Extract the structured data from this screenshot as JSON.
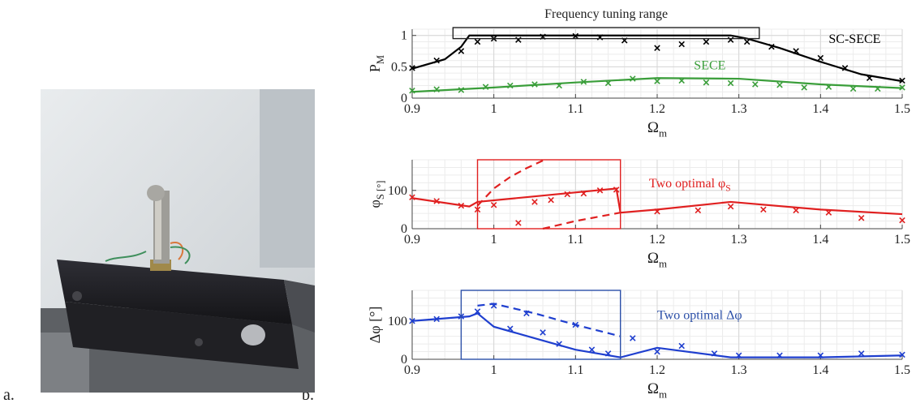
{
  "labels": {
    "panel_a": "a.",
    "panel_b": "b."
  },
  "photo": {
    "subject": "cantilever-harvester-photo",
    "colors": {
      "wall": "#d7dbde",
      "block": "#1c1c20",
      "plate": "#9e9d98",
      "frame": "#6c6e72",
      "wire_green": "#3f8f5c",
      "wire_orange": "#d9773b"
    }
  },
  "chart_data": [
    {
      "type": "line",
      "title": "Frequency tuning range",
      "xlabel": "Ω_m",
      "ylabel": "P_M",
      "xlim": [
        0.9,
        1.5
      ],
      "ylim": [
        0,
        1.1
      ],
      "xticks": [
        0.9,
        1,
        1.1,
        1.2,
        1.3,
        1.4,
        1.5
      ],
      "yticks": [
        0,
        0.5,
        1
      ],
      "xtick_labels": [
        "0.9",
        "1",
        "1.1",
        "1.2",
        "1.3",
        "1.4",
        "1.5"
      ],
      "ytick_labels": [
        "0",
        "0.5",
        "1"
      ],
      "grid": true,
      "highlight_box": {
        "x": [
          0.95,
          1.325
        ],
        "y": [
          0.95,
          1.1
        ],
        "color": "#222222"
      },
      "series": [
        {
          "name": "SC-SECE",
          "style": "line",
          "color": "#000000",
          "x": [
            0.9,
            0.94,
            0.96,
            0.97,
            1.0,
            1.1,
            1.2,
            1.29,
            1.31,
            1.35,
            1.4,
            1.45,
            1.5
          ],
          "y": [
            0.47,
            0.62,
            0.82,
            1.0,
            1.0,
            1.0,
            1.0,
            1.0,
            0.95,
            0.8,
            0.58,
            0.38,
            0.27
          ]
        },
        {
          "name": "",
          "style": "markers",
          "color": "#000000",
          "x": [
            0.9,
            0.93,
            0.96,
            0.98,
            1.0,
            1.03,
            1.06,
            1.1,
            1.13,
            1.16,
            1.2,
            1.23,
            1.26,
            1.29,
            1.31,
            1.34,
            1.37,
            1.4,
            1.43,
            1.46,
            1.5
          ],
          "y": [
            0.48,
            0.6,
            0.75,
            0.9,
            0.95,
            0.93,
            0.98,
            0.99,
            0.97,
            0.92,
            0.8,
            0.86,
            0.9,
            0.93,
            0.9,
            0.82,
            0.75,
            0.64,
            0.48,
            0.32,
            0.28
          ]
        },
        {
          "name": "SECE",
          "style": "line",
          "color": "#3a9e3a",
          "x": [
            0.9,
            1.0,
            1.1,
            1.2,
            1.3,
            1.4,
            1.5
          ],
          "y": [
            0.1,
            0.17,
            0.25,
            0.32,
            0.31,
            0.22,
            0.16
          ]
        },
        {
          "name": "",
          "style": "markers",
          "color": "#3a9e3a",
          "x": [
            0.9,
            0.93,
            0.96,
            0.99,
            1.02,
            1.05,
            1.08,
            1.11,
            1.14,
            1.17,
            1.2,
            1.23,
            1.26,
            1.29,
            1.32,
            1.35,
            1.38,
            1.41,
            1.44,
            1.47,
            1.5
          ],
          "y": [
            0.12,
            0.14,
            0.13,
            0.18,
            0.2,
            0.22,
            0.2,
            0.26,
            0.24,
            0.31,
            0.27,
            0.28,
            0.25,
            0.24,
            0.22,
            0.21,
            0.17,
            0.18,
            0.15,
            0.15,
            0.17
          ]
        }
      ],
      "annotations": [
        {
          "text": "SC-SECE",
          "x": 1.41,
          "y": 0.88,
          "color": "#000000"
        },
        {
          "text": "SECE",
          "x": 1.245,
          "y": 0.46,
          "color": "#3a9e3a"
        }
      ]
    },
    {
      "type": "line",
      "title": "",
      "xlabel": "Ω_m",
      "ylabel": "φ_S [°]",
      "xlim": [
        0.9,
        1.5
      ],
      "ylim": [
        0,
        180
      ],
      "xticks": [
        0.9,
        1,
        1.1,
        1.2,
        1.3,
        1.4,
        1.5
      ],
      "yticks": [
        0,
        100
      ],
      "xtick_labels": [
        "0.9",
        "1",
        "1.1",
        "1.2",
        "1.3",
        "1.4",
        "1.5"
      ],
      "ytick_labels": [
        "0",
        "100"
      ],
      "grid": true,
      "highlight_box": {
        "x": [
          0.98,
          1.155
        ],
        "y": [
          0,
          180
        ],
        "color": "#e02020"
      },
      "series": [
        {
          "name": "",
          "style": "line",
          "color": "#e02020",
          "x": [
            0.9,
            0.97,
            0.98,
            1.15,
            1.155,
            1.2,
            1.29,
            1.4,
            1.5
          ],
          "y": [
            80,
            58,
            70,
            105,
            42,
            50,
            70,
            50,
            38
          ]
        },
        {
          "name": "",
          "style": "dashed",
          "color": "#e02020",
          "x": [
            0.98,
            1.0,
            1.02,
            1.04,
            1.06
          ],
          "y": [
            60,
            105,
            135,
            158,
            178
          ]
        },
        {
          "name": "",
          "style": "dashed",
          "color": "#e02020",
          "x": [
            1.06,
            1.1,
            1.155
          ],
          "y": [
            0,
            20,
            42
          ]
        },
        {
          "name": "",
          "style": "markers",
          "color": "#e02020",
          "x": [
            0.9,
            0.93,
            0.96,
            0.98,
            1.0,
            1.03,
            1.05,
            1.07,
            1.09,
            1.11,
            1.13,
            1.15,
            1.2,
            1.25,
            1.29,
            1.33,
            1.37,
            1.41,
            1.45,
            1.5
          ],
          "y": [
            82,
            72,
            60,
            50,
            62,
            15,
            70,
            75,
            90,
            92,
            100,
            102,
            45,
            48,
            58,
            50,
            48,
            42,
            28,
            22
          ]
        }
      ],
      "annotations": [
        {
          "text": "Two optimal φ_S",
          "x": 1.19,
          "y": 108,
          "color": "#e02020"
        }
      ]
    },
    {
      "type": "line",
      "title": "",
      "xlabel": "Ω_m",
      "ylabel": "Δφ [°]",
      "xlim": [
        0.9,
        1.5
      ],
      "ylim": [
        0,
        180
      ],
      "xticks": [
        0.9,
        1,
        1.1,
        1.2,
        1.3,
        1.4,
        1.5
      ],
      "yticks": [
        0,
        100
      ],
      "xtick_labels": [
        "0.9",
        "1",
        "1.1",
        "1.2",
        "1.3",
        "1.4",
        "1.5"
      ],
      "ytick_labels": [
        "0",
        "100"
      ],
      "grid": true,
      "highlight_box": {
        "x": [
          0.96,
          1.155
        ],
        "y": [
          0,
          180
        ],
        "color": "#2b4fa8"
      },
      "series": [
        {
          "name": "",
          "style": "line",
          "color": "#1f3fcf",
          "x": [
            0.9,
            0.97,
            0.98,
            1.0,
            1.05,
            1.1,
            1.155,
            1.2,
            1.29,
            1.4,
            1.5
          ],
          "y": [
            100,
            112,
            120,
            85,
            55,
            25,
            5,
            30,
            5,
            5,
            10
          ]
        },
        {
          "name": "",
          "style": "dashed",
          "color": "#1f3fcf",
          "x": [
            0.98,
            1.0,
            1.05,
            1.1,
            1.155
          ],
          "y": [
            140,
            145,
            120,
            90,
            60
          ]
        },
        {
          "name": "",
          "style": "markers",
          "color": "#1f3fcf",
          "x": [
            0.9,
            0.93,
            0.96,
            0.98,
            1.0,
            1.02,
            1.04,
            1.06,
            1.08,
            1.1,
            1.12,
            1.14,
            1.17,
            1.2,
            1.23,
            1.27,
            1.3,
            1.35,
            1.4,
            1.45,
            1.5
          ],
          "y": [
            100,
            105,
            112,
            125,
            140,
            80,
            120,
            70,
            40,
            90,
            25,
            15,
            55,
            20,
            35,
            15,
            10,
            10,
            10,
            15,
            12
          ]
        }
      ],
      "annotations": [
        {
          "text": "Two optimal Δφ",
          "x": 1.2,
          "y": 105,
          "color": "#2b4fa8"
        }
      ]
    }
  ]
}
